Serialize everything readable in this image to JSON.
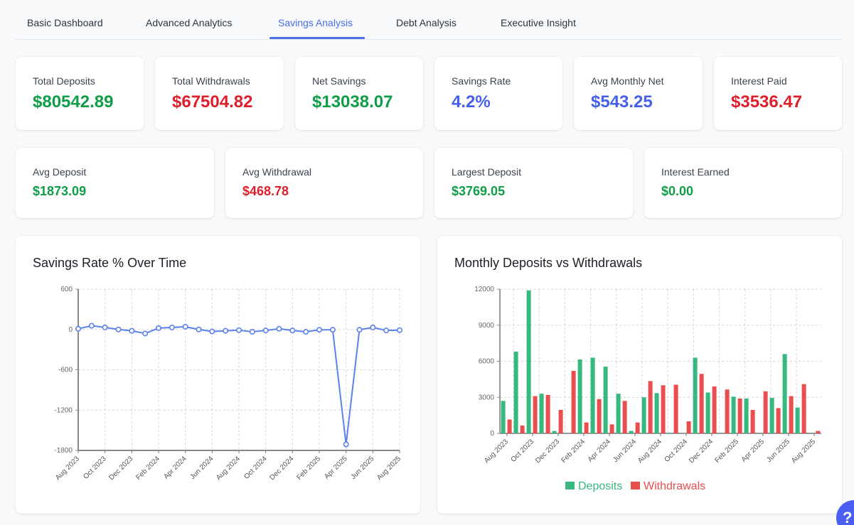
{
  "tabs": [
    {
      "label": "Basic Dashboard",
      "active": false
    },
    {
      "label": "Advanced Analytics",
      "active": false
    },
    {
      "label": "Savings Analysis",
      "active": true
    },
    {
      "label": "Debt Analysis",
      "active": false
    },
    {
      "label": "Executive Insight",
      "active": false
    }
  ],
  "kpis_row1": [
    {
      "label": "Total Deposits",
      "value": "$80542.89",
      "tone": "green"
    },
    {
      "label": "Total Withdrawals",
      "value": "$67504.82",
      "tone": "red"
    },
    {
      "label": "Net Savings",
      "value": "$13038.07",
      "tone": "green"
    },
    {
      "label": "Savings Rate",
      "value": "4.2%",
      "tone": "blue"
    },
    {
      "label": "Avg Monthly Net",
      "value": "$543.25",
      "tone": "blue"
    },
    {
      "label": "Interest Paid",
      "value": "$3536.47",
      "tone": "red"
    }
  ],
  "kpis_row2": [
    {
      "label": "Avg Deposit",
      "value": "$1873.09",
      "tone": "green"
    },
    {
      "label": "Avg Withdrawal",
      "value": "$468.78",
      "tone": "red"
    },
    {
      "label": "Largest Deposit",
      "value": "$3769.05",
      "tone": "green"
    },
    {
      "label": "Interest Earned",
      "value": "$0.00",
      "tone": "green"
    }
  ],
  "colors": {
    "accent": "#4a73e8",
    "line": "#5b82ec",
    "deposits": "#35b97f",
    "withdrawals": "#e84e4e",
    "green_text": "#0f9d47",
    "red_text": "#dc1f2a",
    "blue_text": "#4560e8"
  },
  "help_icon": "question-mark-icon",
  "chart_data": [
    {
      "type": "line",
      "title": "Savings Rate % Over Time",
      "xlabel": "",
      "ylabel": "",
      "ylim": [
        -1800,
        600
      ],
      "yticks": [
        600,
        0,
        -600,
        -1200,
        -1800
      ],
      "xticks": [
        "Aug 2023",
        "Oct 2023",
        "Dec 2023",
        "Feb 2024",
        "Apr 2024",
        "Jun 2024",
        "Aug 2024",
        "Oct 2024",
        "Dec 2024",
        "Feb 2025",
        "Apr 2025",
        "Jun 2025",
        "Aug 2025"
      ],
      "grid": true,
      "x": [
        "Aug 2023",
        "Sep 2023",
        "Oct 2023",
        "Nov 2023",
        "Dec 2023",
        "Jan 2024",
        "Feb 2024",
        "Mar 2024",
        "Apr 2024",
        "May 2024",
        "Jun 2024",
        "Jul 2024",
        "Aug 2024",
        "Sep 2024",
        "Oct 2024",
        "Nov 2024",
        "Dec 2024",
        "Jan 2025",
        "Feb 2025",
        "Mar 2025",
        "Apr 2025",
        "May 2025",
        "Jun 2025",
        "Jul 2025",
        "Aug 2025"
      ],
      "series": [
        {
          "name": "Savings Rate %",
          "values": [
            10,
            55,
            30,
            0,
            -20,
            -60,
            20,
            30,
            40,
            0,
            -30,
            -20,
            -10,
            -35,
            -15,
            10,
            -15,
            -35,
            -5,
            -5,
            -1710,
            -5,
            30,
            -15,
            -10
          ]
        }
      ]
    },
    {
      "type": "bar",
      "title": "Monthly Deposits vs Withdrawals",
      "xlabel": "",
      "ylabel": "",
      "ylim": [
        0,
        12000
      ],
      "yticks": [
        0,
        3000,
        6000,
        9000,
        12000
      ],
      "xticks": [
        "Aug 2023",
        "Oct 2023",
        "Dec 2023",
        "Feb 2024",
        "Apr 2024",
        "Jun 2024",
        "Aug 2024",
        "Oct 2024",
        "Dec 2024",
        "Feb 2025",
        "Apr 2025",
        "Jun 2025",
        "Aug 2025"
      ],
      "grid": true,
      "legend": "bottom",
      "legend_entries": [
        "Deposits",
        "Withdrawals"
      ],
      "series": [
        {
          "name": "Deposits",
          "points": [
            {
              "t": -0.3,
              "v": 2700
            },
            {
              "t": 0.7,
              "v": 6800
            },
            {
              "t": 1.7,
              "v": 11900
            },
            {
              "t": 2.7,
              "v": 3300
            },
            {
              "t": 3.7,
              "v": 200
            },
            {
              "t": 5.7,
              "v": 6150
            },
            {
              "t": 6.7,
              "v": 6300
            },
            {
              "t": 7.7,
              "v": 5550
            },
            {
              "t": 8.7,
              "v": 3300
            },
            {
              "t": 9.7,
              "v": 200
            },
            {
              "t": 10.7,
              "v": 3000
            },
            {
              "t": 11.7,
              "v": 3350
            },
            {
              "t": 12.7,
              "v": 50
            },
            {
              "t": 14.7,
              "v": 6300
            },
            {
              "t": 15.7,
              "v": 3400
            },
            {
              "t": 17.7,
              "v": 3050
            },
            {
              "t": 18.7,
              "v": 2900
            },
            {
              "t": 20.7,
              "v": 2950
            },
            {
              "t": 21.7,
              "v": 6600
            },
            {
              "t": 22.7,
              "v": 2150
            }
          ]
        },
        {
          "name": "Withdrawals",
          "points": [
            {
              "t": 0.2,
              "v": 1150
            },
            {
              "t": 1.2,
              "v": 650
            },
            {
              "t": 2.2,
              "v": 3100
            },
            {
              "t": 3.2,
              "v": 3200
            },
            {
              "t": 4.2,
              "v": 1950
            },
            {
              "t": 5.2,
              "v": 5200
            },
            {
              "t": 6.2,
              "v": 900
            },
            {
              "t": 7.2,
              "v": 2850
            },
            {
              "t": 8.2,
              "v": 750
            },
            {
              "t": 9.2,
              "v": 2700
            },
            {
              "t": 10.2,
              "v": 900
            },
            {
              "t": 11.2,
              "v": 4350
            },
            {
              "t": 12.2,
              "v": 4000
            },
            {
              "t": 13.2,
              "v": 4050
            },
            {
              "t": 14.2,
              "v": 1000
            },
            {
              "t": 15.2,
              "v": 4950
            },
            {
              "t": 16.2,
              "v": 3900
            },
            {
              "t": 17.2,
              "v": 3650
            },
            {
              "t": 18.2,
              "v": 2900
            },
            {
              "t": 19.2,
              "v": 1950
            },
            {
              "t": 20.2,
              "v": 3500
            },
            {
              "t": 21.2,
              "v": 2100
            },
            {
              "t": 22.2,
              "v": 3100
            },
            {
              "t": 23.2,
              "v": 4100
            },
            {
              "t": 24.3,
              "v": 200
            }
          ]
        }
      ],
      "x_unit": "months since Aug 2023"
    }
  ]
}
